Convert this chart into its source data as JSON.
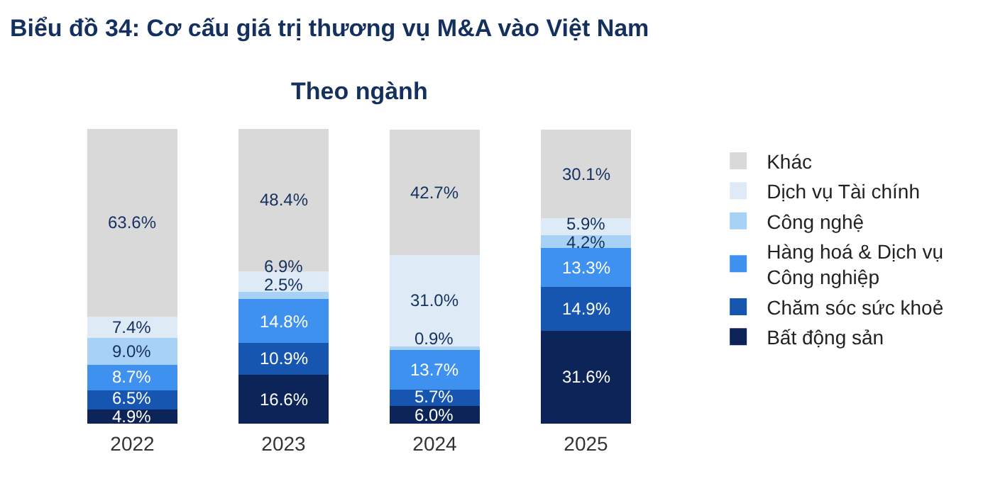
{
  "chart_data": {
    "type": "bar",
    "title": "Biểu đồ 34: Cơ cấu giá trị thương vụ M&A vào Việt Nam",
    "subtitle": "Theo ngành",
    "stacked": true,
    "legend": "right",
    "categories": [
      "2022",
      "2023",
      "2024",
      "2025"
    ],
    "series": [
      {
        "name": "Bất động sản",
        "color": "#0c2457",
        "values": [
          4.9,
          16.6,
          6.0,
          31.6
        ],
        "value_labels": [
          "4.9%",
          "16.6%",
          "6.0%",
          "31.6%"
        ]
      },
      {
        "name": "Chăm sóc sức khoẻ",
        "color": "#1656b0",
        "values": [
          6.5,
          10.9,
          5.7,
          14.9
        ],
        "value_labels": [
          "6.5%",
          "10.9%",
          "5.7%",
          "14.9%"
        ]
      },
      {
        "name": "Hàng hoá & Dịch vụ Công nghiệp",
        "color": "#3f91f0",
        "values": [
          8.7,
          14.8,
          13.7,
          13.3
        ],
        "value_labels": [
          "8.7%",
          "14.8%",
          "13.7%",
          "13.3%"
        ]
      },
      {
        "name": "Công nghệ",
        "color": "#a8d2f5",
        "values": [
          9.0,
          2.5,
          0.9,
          4.2
        ],
        "value_labels": [
          "9.0%",
          "2.5%",
          "0.9%",
          "4.2%"
        ]
      },
      {
        "name": "Dịch vụ Tài chính",
        "color": "#dfeaf7",
        "values": [
          7.4,
          6.9,
          31.0,
          5.9
        ],
        "value_labels": [
          "7.4%",
          "6.9%",
          "31.0%",
          "5.9%"
        ]
      },
      {
        "name": "Khác",
        "color": "#d9d9d9",
        "values": [
          63.6,
          48.4,
          42.7,
          30.1
        ],
        "value_labels": [
          "63.6%",
          "48.4%",
          "42.7%",
          "30.1%"
        ]
      }
    ]
  }
}
